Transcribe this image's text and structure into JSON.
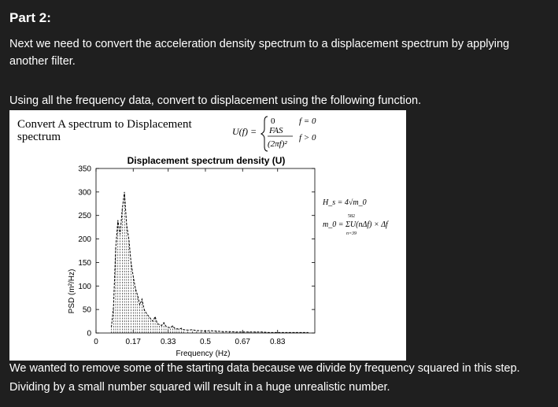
{
  "heading": "Part 2:",
  "intro_line1": "Next we need to convert the acceleration density spectrum to a displacement spectrum by applying",
  "intro_line2": "another filter.",
  "instruction": "Using all the frequency data, convert to displacement using the following function.",
  "note_line1": "We wanted to remove some of the starting data because we divide by frequency squared in this step.",
  "note_line2": "Dividing by a small number squared will result in a huge unrealistic number.",
  "figure": {
    "caption_line1": "Convert A spectrum to Displacement",
    "caption_line2": "spectrum",
    "formula": {
      "lhs": "U(f) =",
      "case1_value": "0",
      "case1_cond": "f = 0",
      "case2_num": "FAS",
      "case2_den": "(2πf)²",
      "case2_cond": "f > 0"
    },
    "side_formula": {
      "hs": "H_s = 4√m_0",
      "sum_top": "582",
      "sum_bottom": "n=39",
      "m0": "m_0 = ΣU(nΔf) × Δf"
    }
  },
  "chart_data": {
    "type": "line",
    "title": "Displacement spectrum density (U)",
    "xlabel": "Frequency (Hz)",
    "ylabel": "PSD (m²/Hz)",
    "xlim": [
      0,
      1
    ],
    "ylim": [
      0,
      350
    ],
    "xticks": [
      0,
      0.17,
      0.33,
      0.5,
      0.67,
      0.83
    ],
    "xtick_labels": [
      "0",
      "0.17",
      "0.33",
      "0.5",
      "0.67",
      "0.83"
    ],
    "yticks": [
      0,
      50,
      100,
      150,
      200,
      250,
      300,
      350
    ],
    "ytick_labels": [
      "0",
      "50",
      "100",
      "150",
      "200",
      "250",
      "300",
      "350"
    ],
    "grid": false,
    "legend": "none",
    "series": [
      {
        "color": "#000000",
        "x": [
          0.07,
          0.08,
          0.09,
          0.1,
          0.11,
          0.12,
          0.13,
          0.14,
          0.15,
          0.16,
          0.17,
          0.18,
          0.19,
          0.2,
          0.21,
          0.22,
          0.23,
          0.24,
          0.25,
          0.26,
          0.27,
          0.28,
          0.29,
          0.3,
          0.31,
          0.32,
          0.33,
          0.34,
          0.35,
          0.36,
          0.37,
          0.38,
          0.39,
          0.4,
          0.42,
          0.44,
          0.46,
          0.48,
          0.5,
          0.52,
          0.55,
          0.58,
          0.61,
          0.64,
          0.67,
          0.7,
          0.73,
          0.76,
          0.79,
          0.82,
          0.85,
          0.88,
          0.91,
          0.94,
          0.97
        ],
        "values": [
          12,
          55,
          180,
          240,
          210,
          265,
          300,
          230,
          200,
          150,
          120,
          95,
          80,
          60,
          72,
          50,
          42,
          36,
          30,
          25,
          35,
          20,
          18,
          16,
          22,
          14,
          12,
          11,
          15,
          10,
          9,
          8,
          10,
          7,
          6,
          7,
          5,
          5,
          4,
          5,
          4,
          3,
          3,
          2,
          2,
          2,
          2,
          2,
          1,
          1,
          1,
          1,
          1,
          1,
          1
        ]
      }
    ]
  }
}
